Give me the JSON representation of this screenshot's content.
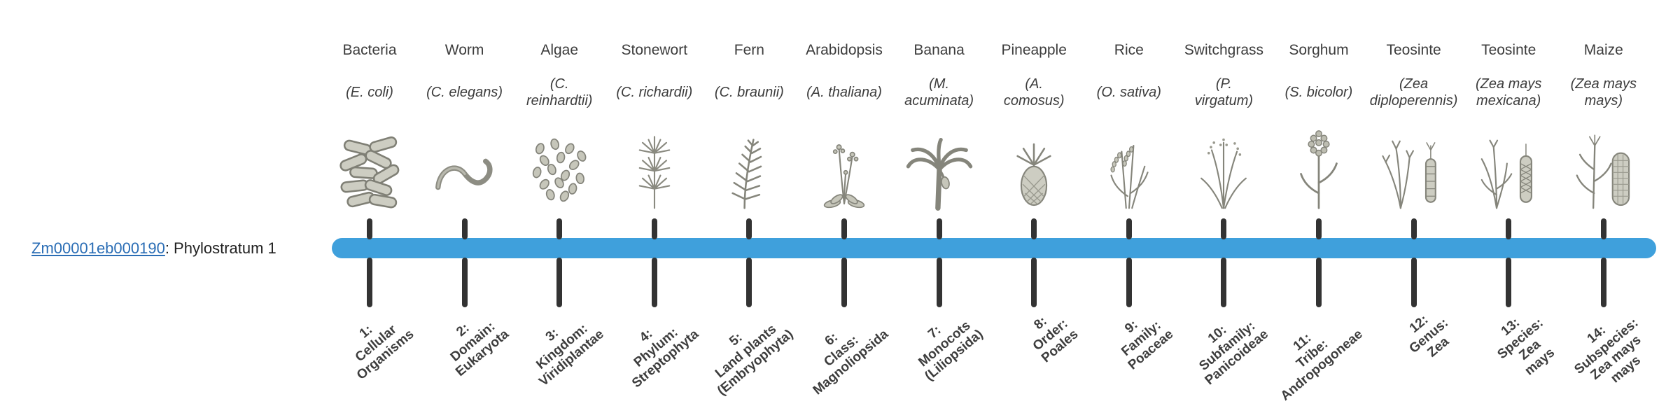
{
  "gene": {
    "link_text": "Zm00001eb000190",
    "suffix": ": Phylostratum 1"
  },
  "colors": {
    "bar": "#3fa0dc",
    "tick": "#333333",
    "link": "#2a6db5",
    "text": "#3c3c3c"
  },
  "taxa": [
    {
      "common": "Bacteria",
      "sci": "(E. coli)",
      "icon": "bacteria-icon",
      "stratum": "1:\nCellular\nOrganisms"
    },
    {
      "common": "Worm",
      "sci": "(C. elegans)",
      "icon": "worm-icon",
      "stratum": "2:\nDomain:\nEukaryota"
    },
    {
      "common": "Algae",
      "sci": "(C.\nreinhardtii)",
      "icon": "algae-icon",
      "stratum": "3:\nKingdom:\nViridiplantae"
    },
    {
      "common": "Stonewort",
      "sci": "(C. richardii)",
      "icon": "stonewort-icon",
      "stratum": "4:\nPhylum:\nStreptophyta"
    },
    {
      "common": "Fern",
      "sci": "(C. braunii)",
      "icon": "fern-icon",
      "stratum": "5:\nLand plants\n(Embryophyta)"
    },
    {
      "common": "Arabidopsis",
      "sci": "(A. thaliana)",
      "icon": "arabidopsis-icon",
      "stratum": "6:\nClass:\nMagnoliopsida"
    },
    {
      "common": "Banana",
      "sci": "(M.\nacuminata)",
      "icon": "banana-icon",
      "stratum": "7:\nMonocots\n(Liliopsida)"
    },
    {
      "common": "Pineapple",
      "sci": "(A.\ncomosus)",
      "icon": "pineapple-icon",
      "stratum": "8:\nOrder:\nPoales"
    },
    {
      "common": "Rice",
      "sci": "(O. sativa)",
      "icon": "rice-icon",
      "stratum": "9:\nFamily:\nPoaceae"
    },
    {
      "common": "Switchgrass",
      "sci": "(P.\nvirgatum)",
      "icon": "switchgrass-icon",
      "stratum": "10:\nSubfamily:\nPanicoideae"
    },
    {
      "common": "Sorghum",
      "sci": "(S. bicolor)",
      "icon": "sorghum-icon",
      "stratum": "11:\nTribe:\nAndropogoneae"
    },
    {
      "common": "Teosinte",
      "sci": "(Zea\ndiploperennis)",
      "icon": "teosinte-diploperennis-icon",
      "stratum": "12:\nGenus:\nZea"
    },
    {
      "common": "Teosinte",
      "sci": "(Zea mays\nmexicana)",
      "icon": "teosinte-mexicana-icon",
      "stratum": "13:\nSpecies:\nZea\nmays"
    },
    {
      "common": "Maize",
      "sci": "(Zea mays\nmays)",
      "icon": "maize-icon",
      "stratum": "14:\nSubspecies:\nZea mays\nmays"
    }
  ]
}
